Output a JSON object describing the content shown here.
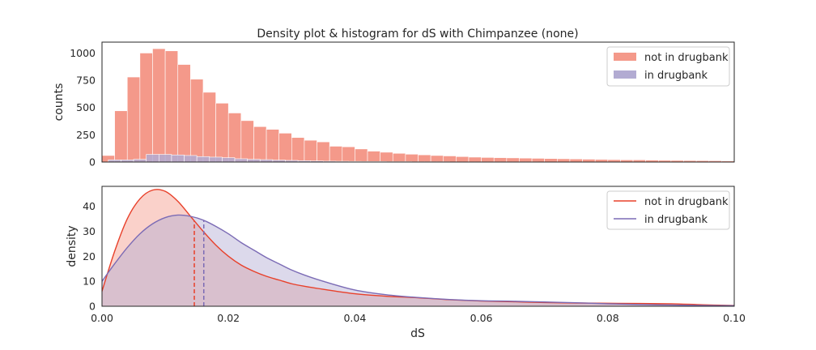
{
  "chart_data": [
    {
      "type": "histogram",
      "title": "Density plot & histogram for dS with Chimpanzee (none)",
      "ylabel": "counts",
      "xlabel": "",
      "xlim": [
        0.0,
        0.1
      ],
      "ylim": [
        0,
        1100
      ],
      "yticks": [
        "0",
        "250",
        "500",
        "750",
        "1000"
      ],
      "grid": false,
      "legend_position": "top-right",
      "bin_width": 0.002,
      "series": [
        {
          "name": "not in drugbank",
          "color": "#f4998a",
          "bin_start": 0.0,
          "counts": [
            60,
            470,
            780,
            1000,
            1040,
            1020,
            895,
            760,
            640,
            540,
            450,
            380,
            325,
            300,
            265,
            225,
            200,
            185,
            145,
            140,
            120,
            100,
            90,
            80,
            72,
            66,
            60,
            56,
            50,
            45,
            42,
            40,
            38,
            36,
            34,
            32,
            30,
            28,
            26,
            24,
            22,
            20,
            20,
            18,
            16,
            15,
            14,
            13,
            12,
            10
          ]
        },
        {
          "name": "in drugbank",
          "color": "#b2abd2",
          "bin_start": 0.001,
          "counts": [
            20,
            20,
            25,
            70,
            70,
            65,
            60,
            50,
            45,
            40,
            30,
            25,
            22,
            18,
            15,
            12,
            10,
            8,
            7,
            6,
            5,
            5,
            4,
            4,
            3,
            3,
            3,
            2,
            2,
            2,
            2,
            2,
            2,
            2,
            1,
            1,
            1,
            1,
            1,
            1,
            1,
            1,
            1,
            1,
            1,
            1,
            1
          ]
        }
      ]
    },
    {
      "type": "area",
      "title": "",
      "xlabel": "dS",
      "ylabel": "density",
      "xlim": [
        0.0,
        0.1
      ],
      "ylim": [
        0,
        48
      ],
      "xticks": [
        "0.00",
        "0.02",
        "0.04",
        "0.06",
        "0.08",
        "0.10"
      ],
      "yticks": [
        "0",
        "10",
        "20",
        "30",
        "40"
      ],
      "grid": false,
      "legend_position": "top-right",
      "series": [
        {
          "name": "not in drugbank",
          "color": "#e8402a",
          "fill": "#f4998a",
          "median": 0.0146,
          "x": [
            0.0,
            0.002,
            0.004,
            0.006,
            0.008,
            0.01,
            0.012,
            0.014,
            0.016,
            0.018,
            0.02,
            0.022,
            0.024,
            0.026,
            0.028,
            0.03,
            0.032,
            0.035,
            0.04,
            0.045,
            0.05,
            0.055,
            0.06,
            0.065,
            0.07,
            0.075,
            0.08,
            0.085,
            0.09,
            0.095,
            0.1
          ],
          "y": [
            6,
            22,
            35,
            43,
            46.5,
            46,
            42,
            36,
            30,
            24.5,
            20,
            16.5,
            14,
            12,
            10.5,
            9,
            8,
            6.8,
            5,
            4,
            3.4,
            2.6,
            2.1,
            1.8,
            1.5,
            1.3,
            1.2,
            1.1,
            1.0,
            0.6,
            0.3
          ]
        },
        {
          "name": "in drugbank",
          "color": "#7b6bb5",
          "fill": "#b2abd2",
          "median": 0.0161,
          "x": [
            0.0,
            0.002,
            0.004,
            0.006,
            0.008,
            0.01,
            0.012,
            0.014,
            0.016,
            0.018,
            0.02,
            0.022,
            0.024,
            0.026,
            0.028,
            0.03,
            0.032,
            0.035,
            0.04,
            0.045,
            0.05,
            0.055,
            0.06,
            0.065,
            0.07,
            0.075,
            0.08,
            0.085,
            0.09,
            0.095,
            0.1
          ],
          "y": [
            10,
            17,
            23.5,
            29,
            33,
            35.5,
            36.5,
            36,
            34.5,
            32,
            29,
            25.5,
            22.5,
            19.5,
            17,
            14.5,
            12.5,
            10,
            6.5,
            4.6,
            3.5,
            2.7,
            2.2,
            2.0,
            1.7,
            1.4,
            1.0,
            0.7,
            0.5,
            0.3,
            0.2
          ]
        }
      ]
    }
  ]
}
